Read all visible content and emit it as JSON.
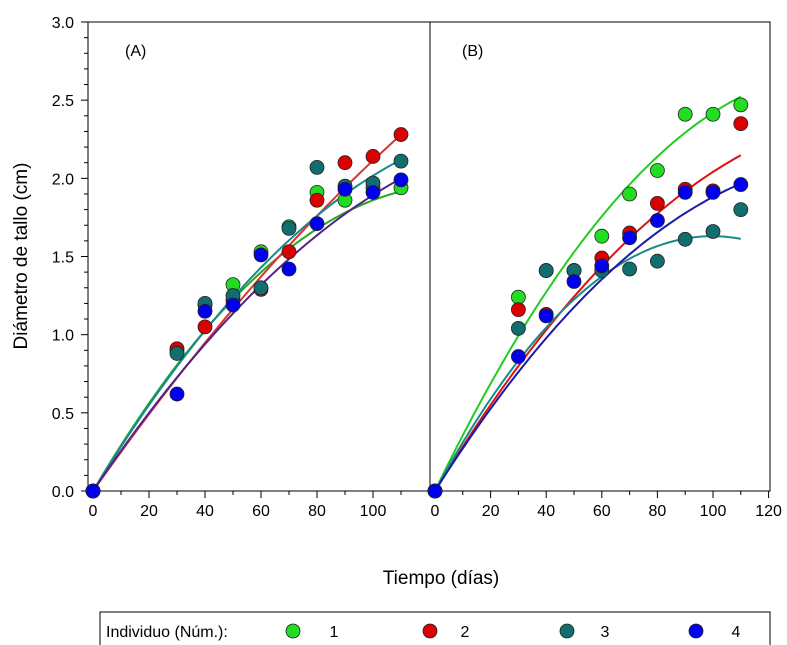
{
  "chart_data": {
    "type": "scatter",
    "xlabel": "Tiempo (días)",
    "ylabel": "Diámetro de tallo (cm)",
    "ylim": [
      0,
      3.0
    ],
    "grid": false,
    "y_ticks": [
      "0.0",
      "0.5",
      "1.0",
      "1.5",
      "2.0",
      "2.5",
      "3.0"
    ],
    "legend": {
      "title": "Individuo (Núm.):",
      "placement": "bottom",
      "entries": [
        {
          "label": "1",
          "color": "#22dd22"
        },
        {
          "label": "2",
          "color": "#dd0000"
        },
        {
          "label": "3",
          "color": "#116e6e"
        },
        {
          "label": "4",
          "color": "#0000ee"
        }
      ]
    },
    "panels": [
      {
        "label": "(A)",
        "xlim": [
          0,
          110
        ],
        "x_ticks": [
          "0",
          "20",
          "40",
          "60",
          "80",
          "100"
        ],
        "series": [
          {
            "name": "1",
            "color": "#22dd22",
            "curve_color": "#22aa22",
            "x": [
              0,
              30,
              40,
              50,
              60,
              70,
              80,
              90,
              100,
              110
            ],
            "y": [
              0.0,
              0.89,
              1.19,
              1.32,
              1.53,
              1.69,
              1.91,
              1.86,
              1.94,
              1.94
            ],
            "fit": [
              0,
              0.0304,
              -0.000118
            ]
          },
          {
            "name": "2",
            "color": "#dd0000",
            "curve_color": "#dd3333",
            "x": [
              0,
              30,
              40,
              50,
              60,
              70,
              80,
              90,
              100,
              110
            ],
            "y": [
              0.0,
              0.91,
              1.05,
              1.22,
              1.29,
              1.53,
              1.86,
              2.1,
              2.14,
              2.28
            ],
            "fit": [
              0,
              0.0254,
              -4.26e-05
            ]
          },
          {
            "name": "3",
            "color": "#116e6e",
            "curve_color": "#1a8a8a",
            "x": [
              0,
              30,
              40,
              50,
              60,
              70,
              80,
              90,
              100,
              110
            ],
            "y": [
              0.0,
              0.88,
              1.2,
              1.25,
              1.3,
              1.68,
              2.07,
              1.95,
              1.97,
              2.11
            ],
            "fit": [
              0,
              0.0293,
              -9.13e-05
            ]
          },
          {
            "name": "4",
            "color": "#0000ee",
            "curve_color": "#552288",
            "x": [
              0,
              30,
              40,
              50,
              60,
              70,
              80,
              90,
              100,
              110
            ],
            "y": [
              0.0,
              0.62,
              1.15,
              1.19,
              1.51,
              1.42,
              1.71,
              1.93,
              1.91,
              1.99
            ],
            "fit": [
              0,
              0.0265,
              -7.57e-05
            ]
          }
        ]
      },
      {
        "label": "(B)",
        "xlim": [
          0,
          120
        ],
        "x_ticks": [
          "0",
          "20",
          "40",
          "60",
          "80",
          "100",
          "120"
        ],
        "series": [
          {
            "name": "1",
            "color": "#22dd22",
            "curve_color": "#22cc22",
            "x": [
              0,
              30,
              40,
              50,
              60,
              70,
              80,
              90,
              100,
              110
            ],
            "y": [
              0.0,
              1.24,
              1.41,
              1.41,
              1.63,
              1.9,
              2.05,
              2.41,
              2.41,
              2.47
            ],
            "fit": [
              0,
              0.0369,
              -0.000127
            ]
          },
          {
            "name": "2",
            "color": "#dd0000",
            "curve_color": "#dd1111",
            "x": [
              0,
              30,
              40,
              50,
              60,
              70,
              80,
              90,
              100,
              110
            ],
            "y": [
              0.0,
              1.16,
              1.13,
              1.41,
              1.49,
              1.65,
              1.84,
              1.93,
              1.92,
              2.35
            ],
            "fit": [
              0,
              0.0293,
              -8.89e-05
            ]
          },
          {
            "name": "3",
            "color": "#116e6e",
            "curve_color": "#1a8a8a",
            "x": [
              0,
              30,
              40,
              50,
              60,
              70,
              80,
              90,
              100,
              110
            ],
            "y": [
              0.0,
              1.04,
              1.41,
              1.41,
              1.41,
              1.42,
              1.47,
              1.61,
              1.66,
              1.8
            ],
            "fit": [
              0,
              0.0327,
              -0.000164
            ]
          },
          {
            "name": "4",
            "color": "#0000ee",
            "curve_color": "#1a1aaa",
            "x": [
              0,
              30,
              40,
              50,
              60,
              70,
              80,
              90,
              100,
              110
            ],
            "y": [
              0.0,
              0.86,
              1.12,
              1.34,
              1.44,
              1.62,
              1.73,
              1.91,
              1.91,
              1.96
            ],
            "fit": [
              0,
              0.0282,
              -9.39e-05
            ]
          }
        ]
      }
    ]
  }
}
